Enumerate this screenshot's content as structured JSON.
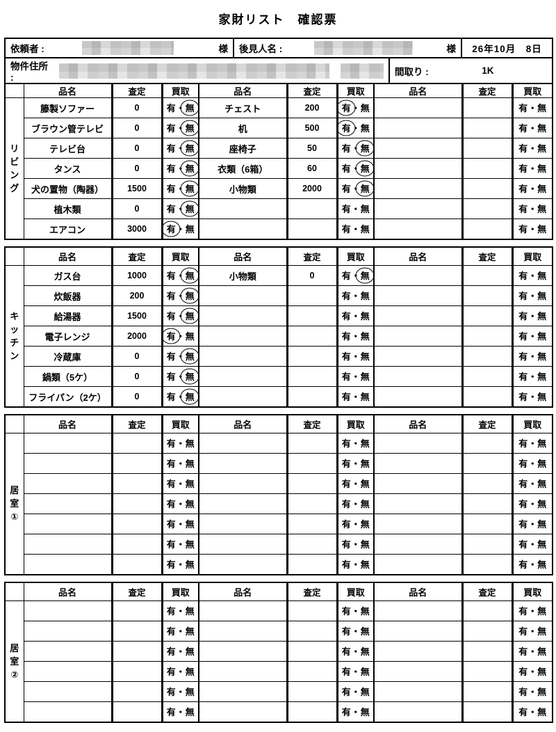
{
  "title": "家財リスト　確認票",
  "header": {
    "client_label": "依頼者 :",
    "client_honorific": "様",
    "guardian_label": "後見人名 :",
    "guardian_honorific": "様",
    "date": "26年10月　8日",
    "address_label": "物件住所 :",
    "madori_label": "間取り :",
    "madori_value": "1K"
  },
  "columns": {
    "item": "品名",
    "appraisal": "査定",
    "purchase": "買取"
  },
  "purchase": {
    "yes": "有",
    "separator": "・",
    "no": "無"
  },
  "sections": [
    {
      "name": "リビング",
      "vertical_label": [
        "リ",
        "ビ",
        "ン",
        "グ"
      ],
      "rows": [
        [
          {
            "item": "籐製ソファー",
            "appraisal": "0",
            "circled": "no"
          },
          {
            "item": "チェスト",
            "appraisal": "200",
            "circled": "yes"
          },
          {
            "item": "",
            "appraisal": "",
            "circled": ""
          }
        ],
        [
          {
            "item": "ブラウン管テレビ",
            "appraisal": "0",
            "circled": "no"
          },
          {
            "item": "机",
            "appraisal": "500",
            "circled": "yes"
          },
          {
            "item": "",
            "appraisal": "",
            "circled": ""
          }
        ],
        [
          {
            "item": "テレビ台",
            "appraisal": "0",
            "circled": "no"
          },
          {
            "item": "座椅子",
            "appraisal": "50",
            "circled": "no"
          },
          {
            "item": "",
            "appraisal": "",
            "circled": ""
          }
        ],
        [
          {
            "item": "タンス",
            "appraisal": "0",
            "circled": "no"
          },
          {
            "item": "衣類（6箱）",
            "appraisal": "60",
            "circled": "no"
          },
          {
            "item": "",
            "appraisal": "",
            "circled": ""
          }
        ],
        [
          {
            "item": "犬の置物（陶器）",
            "appraisal": "1500",
            "circled": "no"
          },
          {
            "item": "小物類",
            "appraisal": "2000",
            "circled": "no"
          },
          {
            "item": "",
            "appraisal": "",
            "circled": ""
          }
        ],
        [
          {
            "item": "植木類",
            "appraisal": "0",
            "circled": "no"
          },
          {
            "item": "",
            "appraisal": "",
            "circled": ""
          },
          {
            "item": "",
            "appraisal": "",
            "circled": ""
          }
        ],
        [
          {
            "item": "エアコン",
            "appraisal": "3000",
            "circled": "yes"
          },
          {
            "item": "",
            "appraisal": "",
            "circled": ""
          },
          {
            "item": "",
            "appraisal": "",
            "circled": ""
          }
        ]
      ]
    },
    {
      "name": "キッチン",
      "vertical_label": [
        "キ",
        "ッ",
        "チ",
        "ン"
      ],
      "rows": [
        [
          {
            "item": "ガス台",
            "appraisal": "1000",
            "circled": "no"
          },
          {
            "item": "小物類",
            "appraisal": "0",
            "circled": "no"
          },
          {
            "item": "",
            "appraisal": "",
            "circled": ""
          }
        ],
        [
          {
            "item": "炊飯器",
            "appraisal": "200",
            "circled": "no"
          },
          {
            "item": "",
            "appraisal": "",
            "circled": ""
          },
          {
            "item": "",
            "appraisal": "",
            "circled": ""
          }
        ],
        [
          {
            "item": "給湯器",
            "appraisal": "1500",
            "circled": "no"
          },
          {
            "item": "",
            "appraisal": "",
            "circled": ""
          },
          {
            "item": "",
            "appraisal": "",
            "circled": ""
          }
        ],
        [
          {
            "item": "電子レンジ",
            "appraisal": "2000",
            "circled": "yes"
          },
          {
            "item": "",
            "appraisal": "",
            "circled": ""
          },
          {
            "item": "",
            "appraisal": "",
            "circled": ""
          }
        ],
        [
          {
            "item": "冷蔵庫",
            "appraisal": "0",
            "circled": "no"
          },
          {
            "item": "",
            "appraisal": "",
            "circled": ""
          },
          {
            "item": "",
            "appraisal": "",
            "circled": ""
          }
        ],
        [
          {
            "item": "鍋類（5ケ）",
            "appraisal": "0",
            "circled": "no"
          },
          {
            "item": "",
            "appraisal": "",
            "circled": ""
          },
          {
            "item": "",
            "appraisal": "",
            "circled": ""
          }
        ],
        [
          {
            "item": "フライパン（2ケ）",
            "appraisal": "0",
            "circled": "no"
          },
          {
            "item": "",
            "appraisal": "",
            "circled": ""
          },
          {
            "item": "",
            "appraisal": "",
            "circled": ""
          }
        ]
      ]
    },
    {
      "name": "居室①",
      "vertical_label": [
        "居",
        "室",
        "①"
      ],
      "rows": [
        [
          {
            "item": "",
            "appraisal": "",
            "circled": ""
          },
          {
            "item": "",
            "appraisal": "",
            "circled": ""
          },
          {
            "item": "",
            "appraisal": "",
            "circled": ""
          }
        ],
        [
          {
            "item": "",
            "appraisal": "",
            "circled": ""
          },
          {
            "item": "",
            "appraisal": "",
            "circled": ""
          },
          {
            "item": "",
            "appraisal": "",
            "circled": ""
          }
        ],
        [
          {
            "item": "",
            "appraisal": "",
            "circled": ""
          },
          {
            "item": "",
            "appraisal": "",
            "circled": ""
          },
          {
            "item": "",
            "appraisal": "",
            "circled": ""
          }
        ],
        [
          {
            "item": "",
            "appraisal": "",
            "circled": ""
          },
          {
            "item": "",
            "appraisal": "",
            "circled": ""
          },
          {
            "item": "",
            "appraisal": "",
            "circled": ""
          }
        ],
        [
          {
            "item": "",
            "appraisal": "",
            "circled": ""
          },
          {
            "item": "",
            "appraisal": "",
            "circled": ""
          },
          {
            "item": "",
            "appraisal": "",
            "circled": ""
          }
        ],
        [
          {
            "item": "",
            "appraisal": "",
            "circled": ""
          },
          {
            "item": "",
            "appraisal": "",
            "circled": ""
          },
          {
            "item": "",
            "appraisal": "",
            "circled": ""
          }
        ],
        [
          {
            "item": "",
            "appraisal": "",
            "circled": ""
          },
          {
            "item": "",
            "appraisal": "",
            "circled": ""
          },
          {
            "item": "",
            "appraisal": "",
            "circled": ""
          }
        ]
      ]
    },
    {
      "name": "居室②",
      "vertical_label": [
        "居",
        "室",
        "②"
      ],
      "rows": [
        [
          {
            "item": "",
            "appraisal": "",
            "circled": ""
          },
          {
            "item": "",
            "appraisal": "",
            "circled": ""
          },
          {
            "item": "",
            "appraisal": "",
            "circled": ""
          }
        ],
        [
          {
            "item": "",
            "appraisal": "",
            "circled": ""
          },
          {
            "item": "",
            "appraisal": "",
            "circled": ""
          },
          {
            "item": "",
            "appraisal": "",
            "circled": ""
          }
        ],
        [
          {
            "item": "",
            "appraisal": "",
            "circled": ""
          },
          {
            "item": "",
            "appraisal": "",
            "circled": ""
          },
          {
            "item": "",
            "appraisal": "",
            "circled": ""
          }
        ],
        [
          {
            "item": "",
            "appraisal": "",
            "circled": ""
          },
          {
            "item": "",
            "appraisal": "",
            "circled": ""
          },
          {
            "item": "",
            "appraisal": "",
            "circled": ""
          }
        ],
        [
          {
            "item": "",
            "appraisal": "",
            "circled": ""
          },
          {
            "item": "",
            "appraisal": "",
            "circled": ""
          },
          {
            "item": "",
            "appraisal": "",
            "circled": ""
          }
        ],
        [
          {
            "item": "",
            "appraisal": "",
            "circled": ""
          },
          {
            "item": "",
            "appraisal": "",
            "circled": ""
          },
          {
            "item": "",
            "appraisal": "",
            "circled": ""
          }
        ]
      ]
    }
  ]
}
